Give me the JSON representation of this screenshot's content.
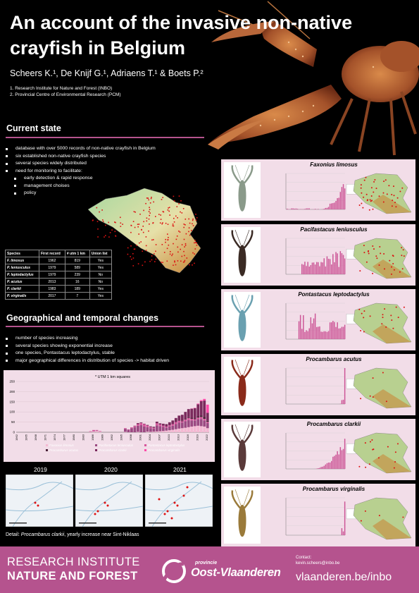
{
  "header": {
    "title": "An account of the invasive non-native crayfish in Belgium",
    "authors": "Scheers K.¹, De Knijf G.¹, Adriaens T.¹ & Boets P.²",
    "affiliations": [
      "1. Research Institute for Nature and Forest (INBO)",
      "2. Provincial Centre of Environmental Research (PCM)"
    ]
  },
  "current_state": {
    "heading": "Current state",
    "bullets": [
      "database with over 5000 records of non-native crayfish in Belgium",
      "six established non-native crayfish species",
      "several species widely distributed",
      "need for monitoring to facilitate:"
    ],
    "sub_bullets": [
      "early detection & rapid response",
      "management choises",
      "policy"
    ]
  },
  "species_table": {
    "headers": [
      "Species",
      "First record",
      "# utm 1 km",
      "Union list"
    ],
    "rows": [
      [
        "F. limosus",
        "1962",
        "819",
        "Yes"
      ],
      [
        "P. leniusculus",
        "1979",
        "589",
        "Yes"
      ],
      [
        "P. leptodactylus",
        "1979",
        "239",
        "No"
      ],
      [
        "P. acutus",
        "2013",
        "16",
        "No"
      ],
      [
        "P. clarkii",
        "1983",
        "189",
        "Yes"
      ],
      [
        "P. virginalis",
        "2017",
        "7",
        "Yes"
      ]
    ]
  },
  "geo_changes": {
    "heading": "Geographical and temporal changes",
    "bullets": [
      "number of species increasing",
      "several species showing exponential increase",
      "one species, Pontastacus leptodactylus, stable",
      "major geographical differences in distribution of species -> habitat driven"
    ]
  },
  "chart_data": {
    "type": "bar",
    "title": "* UTM 1 km squares",
    "stacked": true,
    "ylim": [
      0,
      250
    ],
    "yticks": [
      0,
      50,
      100,
      150,
      200,
      250
    ],
    "xticks": [
      "1962",
      "1965",
      "1968",
      "1971",
      "1974",
      "1977",
      "1980",
      "1983",
      "1986",
      "1989",
      "1992",
      "1995",
      "1998",
      "2001",
      "2004",
      "2007",
      "2010",
      "2013",
      "2016",
      "2019",
      "2022"
    ],
    "x_start": 1962,
    "x_end": 2022,
    "series": [
      {
        "name": "Faxonius limosus",
        "color": "#f4b8d2",
        "values": [
          0,
          0,
          0,
          0,
          0,
          0,
          0,
          0,
          0,
          0,
          0,
          0,
          0,
          0,
          0,
          0,
          0,
          0,
          0,
          0,
          0,
          0,
          0,
          2,
          4,
          6,
          3,
          0,
          0,
          0,
          0,
          0,
          0,
          0,
          2,
          0,
          0,
          0,
          2,
          0,
          0,
          3,
          2,
          3,
          4,
          5,
          6,
          8,
          10,
          12,
          15,
          18,
          20,
          22,
          25,
          28,
          30,
          32,
          30,
          28,
          20
        ]
      },
      {
        "name": "Pacifastacus leniusculus",
        "color": "#9b4a82",
        "values": [
          0,
          0,
          0,
          0,
          0,
          0,
          0,
          0,
          0,
          0,
          0,
          0,
          0,
          0,
          0,
          0,
          0,
          0,
          0,
          0,
          0,
          0,
          0,
          1,
          2,
          2,
          1,
          0,
          0,
          0,
          0,
          0,
          0,
          0,
          15,
          12,
          20,
          25,
          30,
          35,
          28,
          22,
          18,
          15,
          30,
          25,
          20,
          15,
          18,
          20,
          25,
          30,
          28,
          32,
          35,
          30,
          28,
          32,
          35,
          30,
          25
        ]
      },
      {
        "name": "Pontastacus leptodactylus",
        "color": "#d6569c",
        "values": [
          0,
          0,
          0,
          0,
          0,
          0,
          0,
          0,
          0,
          0,
          0,
          0,
          0,
          0,
          0,
          0,
          0,
          0,
          0,
          0,
          0,
          0,
          0,
          2,
          5,
          3,
          2,
          0,
          0,
          0,
          0,
          0,
          0,
          0,
          3,
          2,
          4,
          5,
          8,
          10,
          12,
          8,
          5,
          4,
          10,
          8,
          6,
          5,
          6,
          8,
          10,
          8,
          6,
          8,
          10,
          8,
          6,
          8,
          10,
          8,
          6
        ]
      },
      {
        "name": "Procambarus acutus",
        "color": "#4a2238",
        "values": [
          0,
          0,
          0,
          0,
          0,
          0,
          0,
          0,
          0,
          0,
          0,
          0,
          0,
          0,
          0,
          0,
          0,
          0,
          0,
          0,
          0,
          0,
          0,
          0,
          0,
          0,
          0,
          0,
          0,
          0,
          0,
          0,
          0,
          0,
          0,
          0,
          0,
          0,
          0,
          0,
          0,
          0,
          0,
          0,
          0,
          0,
          0,
          0,
          0,
          0,
          0,
          1,
          2,
          3,
          4,
          5,
          4,
          6,
          8,
          10,
          5
        ]
      },
      {
        "name": "Procambarus clarkii",
        "color": "#7a2a5c",
        "values": [
          0,
          0,
          0,
          0,
          0,
          0,
          0,
          0,
          0,
          0,
          0,
          0,
          0,
          0,
          0,
          0,
          0,
          0,
          0,
          0,
          0,
          0,
          0,
          0,
          0,
          0,
          0,
          0,
          0,
          0,
          0,
          0,
          0,
          0,
          0,
          0,
          0,
          2,
          5,
          3,
          2,
          3,
          4,
          5,
          8,
          6,
          10,
          12,
          15,
          18,
          20,
          25,
          30,
          35,
          40,
          45,
          50,
          60,
          70,
          80,
          40
        ]
      },
      {
        "name": "Procambarus virginalis",
        "color": "#ff4aa8",
        "values": [
          0,
          0,
          0,
          0,
          0,
          0,
          0,
          0,
          0,
          0,
          0,
          0,
          0,
          0,
          0,
          0,
          0,
          0,
          0,
          0,
          0,
          0,
          0,
          0,
          0,
          0,
          0,
          0,
          0,
          0,
          0,
          0,
          0,
          0,
          0,
          0,
          0,
          0,
          0,
          0,
          0,
          0,
          0,
          0,
          0,
          0,
          0,
          0,
          0,
          0,
          0,
          0,
          0,
          0,
          0,
          1,
          2,
          3,
          5,
          8,
          40
        ]
      }
    ]
  },
  "detail": {
    "years": [
      "2019",
      "2020",
      "2021"
    ],
    "caption_prefix": "Detail: ",
    "caption_species": "Procambarus clarkii",
    "caption_suffix": ", yearly increase near Sint-Niklaas"
  },
  "species_panels": [
    {
      "name": "Faxonius limosus",
      "body_color": "#8a9a8a"
    },
    {
      "name": "Pacifastacus leniusculus",
      "body_color": "#3a2a24"
    },
    {
      "name": "Pontastacus leptodactylus",
      "body_color": "#6aa0b0"
    },
    {
      "name": "Procambarus acutus",
      "body_color": "#8a2a1a"
    },
    {
      "name": "Procambarus clarkii",
      "body_color": "#5a3a3a"
    },
    {
      "name": "Procambarus virginalis",
      "body_color": "#9a7a3a"
    }
  ],
  "footer": {
    "institute_line1": "RESEARCH INSTITUTE",
    "institute_line2": "NATURE AND FOREST",
    "province_small": "provincie",
    "province_name": "Oost-Vlaanderen",
    "contact_label": "Contact:",
    "contact_email": "kevin.scheers@inbo.be",
    "website": "vlaanderen.be/inbo"
  },
  "colors": {
    "accent": "#b5538e",
    "panel_bg": "#f2dde8"
  }
}
